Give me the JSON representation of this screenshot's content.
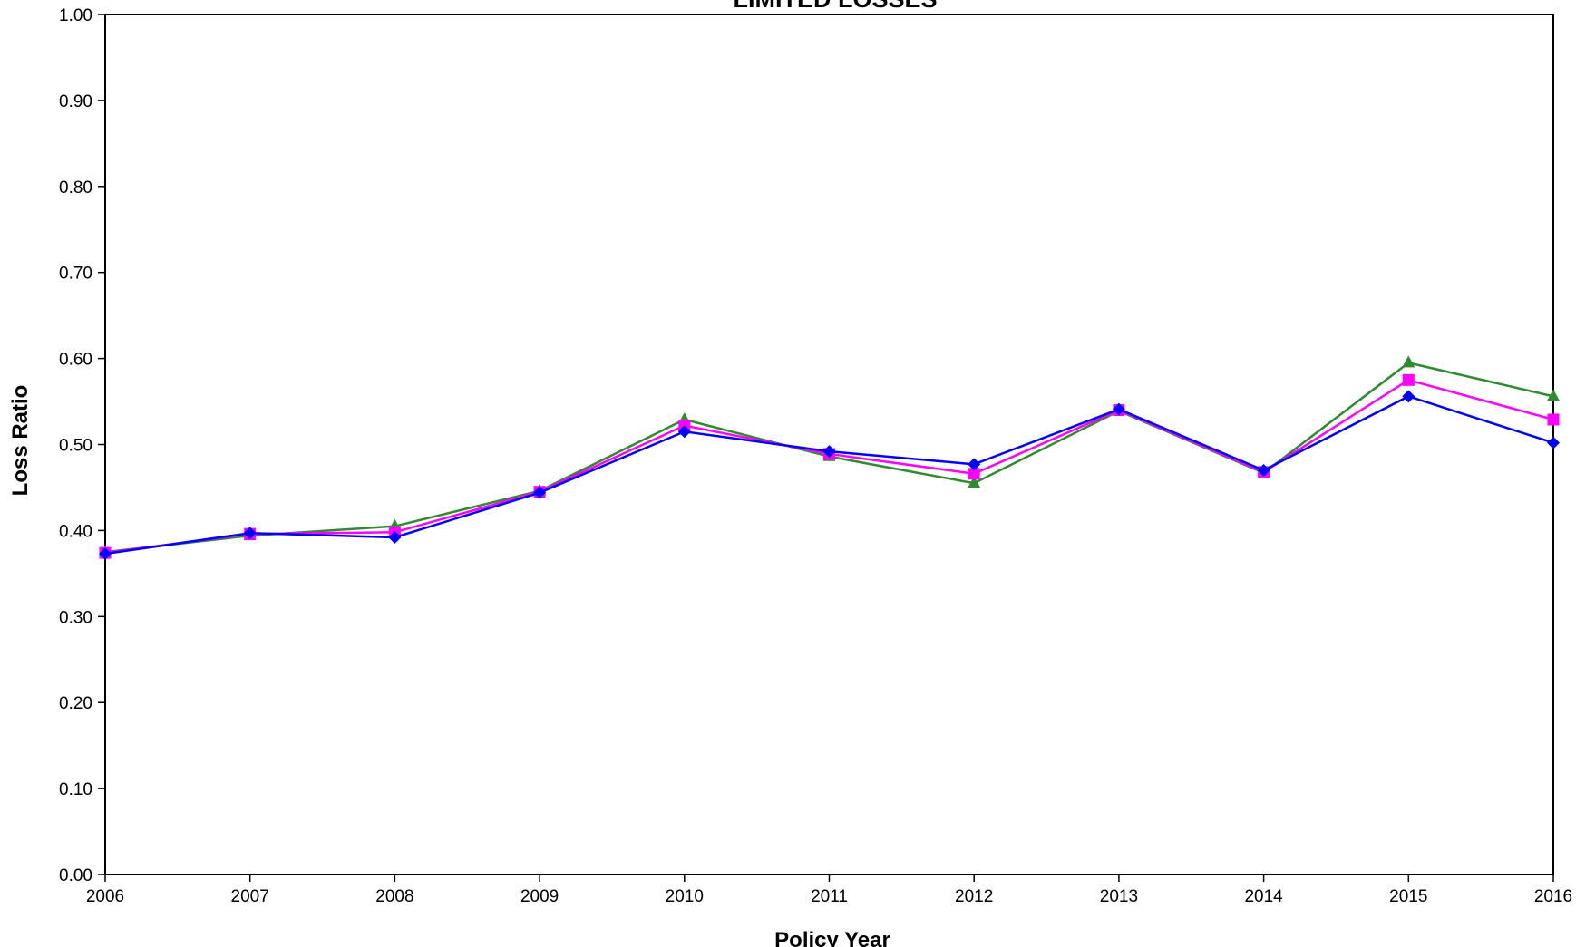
{
  "chart_data": {
    "type": "line",
    "title": "LIMITED LOSSES",
    "xlabel": "Policy Year",
    "ylabel": "Loss Ratio",
    "categories": [
      "2006",
      "2007",
      "2008",
      "2009",
      "2010",
      "2011",
      "2012",
      "2013",
      "2014",
      "2015",
      "2016"
    ],
    "y_ticks": [
      "0.00",
      "0.10",
      "0.20",
      "0.30",
      "0.40",
      "0.50",
      "0.60",
      "0.70",
      "0.80",
      "0.90",
      "1.00"
    ],
    "ylim": [
      0,
      1
    ],
    "grid": false,
    "legend": "none",
    "series": [
      {
        "color": "#2E8B2E",
        "marker": "triangle",
        "values": [
          0.375,
          0.394,
          0.405,
          0.446,
          0.529,
          0.486,
          0.455,
          0.539,
          0.467,
          0.595,
          0.556
        ]
      },
      {
        "color": "#FF00FF",
        "marker": "square",
        "values": [
          0.374,
          0.396,
          0.398,
          0.445,
          0.522,
          0.489,
          0.466,
          0.54,
          0.468,
          0.575,
          0.529
        ]
      },
      {
        "color": "#0000FF",
        "marker": "diamond",
        "values": [
          0.373,
          0.397,
          0.392,
          0.444,
          0.515,
          0.492,
          0.477,
          0.541,
          0.47,
          0.556,
          0.502
        ]
      }
    ]
  }
}
